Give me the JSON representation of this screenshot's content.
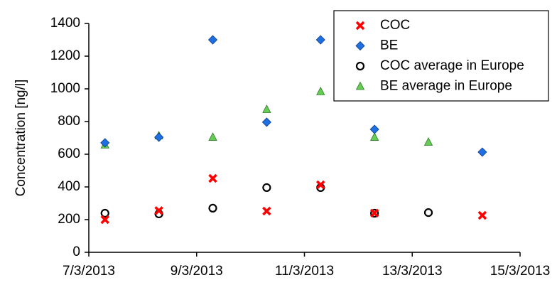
{
  "chart_data": {
    "type": "scatter",
    "y_label": "Concentration  [ng/l]",
    "x": [
      7.3,
      8.3,
      9.3,
      10.3,
      11.3,
      12.3,
      13.3,
      14.3
    ],
    "xlim": [
      7,
      15
    ],
    "xticks": [
      {
        "value": 7,
        "label": "7/3/2013"
      },
      {
        "value": 9,
        "label": "9/3/2013"
      },
      {
        "value": 11,
        "label": "11/3/2013"
      },
      {
        "value": 13,
        "label": "13/3/2013"
      },
      {
        "value": 15,
        "label": "15/3/2013"
      }
    ],
    "ylim": [
      0,
      1400
    ],
    "yticks": [
      0,
      200,
      400,
      600,
      800,
      1000,
      1200,
      1400
    ],
    "grid": false,
    "legend": "top-right",
    "series": [
      {
        "name": "COC",
        "color": "#ff0000",
        "marker": "x",
        "values": [
          200,
          255,
          452,
          252,
          413,
          240,
          null,
          226
        ]
      },
      {
        "name": "BE",
        "color": "#1f6fe0",
        "marker": "diamond",
        "values": [
          670,
          704,
          1300,
          796,
          1300,
          752,
          null,
          613
        ]
      },
      {
        "name": "COC average in Europe",
        "color": "#000000",
        "marker": "circle",
        "values": [
          239,
          235,
          270,
          396,
          396,
          239,
          243,
          null
        ]
      },
      {
        "name": "BE average in Europe",
        "color": "#66cc55",
        "marker": "triangle",
        "values": [
          657,
          713,
          704,
          874,
          983,
          704,
          674,
          null
        ]
      }
    ]
  }
}
